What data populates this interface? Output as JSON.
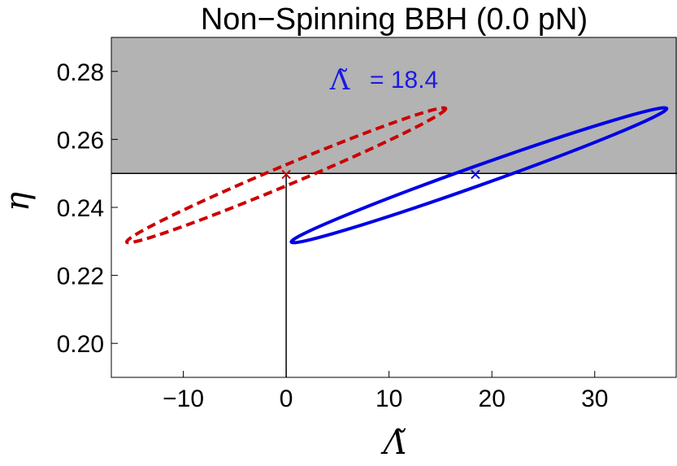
{
  "chart_data": {
    "type": "scatter",
    "title": "Non−Spinning BBH (0.0 pN)",
    "xlabel": "Λ̃",
    "ylabel": "η",
    "xlim": [
      -17,
      38
    ],
    "ylim": [
      0.19,
      0.29
    ],
    "xticks": [
      -10,
      0,
      10,
      20,
      30
    ],
    "xtick_labels": [
      "−10",
      "0",
      "10",
      "20",
      "30"
    ],
    "yticks": [
      0.2,
      0.22,
      0.24,
      0.26,
      0.28
    ],
    "ytick_labels": [
      "0.20",
      "0.22",
      "0.24",
      "0.26",
      "0.28"
    ],
    "shaded_region": {
      "y_from": 0.25,
      "y_to": 0.29,
      "color": "#b3b3b3"
    },
    "reference_lines": {
      "horizontal_y": 0.25,
      "vertical_x": 0
    },
    "annotation": {
      "symbol": "Λ̃",
      "text": "= 18.4"
    },
    "series": [
      {
        "style": "dashed",
        "color": "#cc0000",
        "marker": {
          "x": 0.0,
          "y": 0.2497
        },
        "ellipse_tips": [
          [
            -15.5,
            0.2298
          ],
          [
            15.5,
            0.2691
          ]
        ],
        "ellipse_semi_minor": 0.85
      },
      {
        "style": "solid",
        "color": "#0000e6",
        "marker": {
          "x": 18.4,
          "y": 0.2497
        },
        "ellipse_tips": [
          [
            0.5,
            0.2298
          ],
          [
            37.0,
            0.2691
          ]
        ],
        "ellipse_semi_minor": 0.9
      }
    ]
  }
}
